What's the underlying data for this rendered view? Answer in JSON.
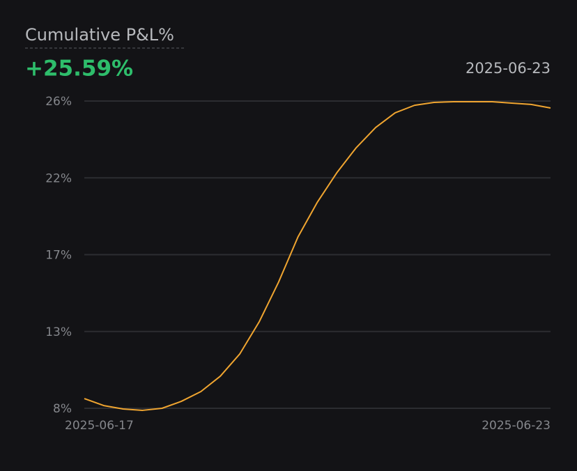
{
  "chart_data": {
    "type": "line",
    "title": "Cumulative P&L%",
    "headline": "+25.59%",
    "date": "2025-06-23",
    "categories": [
      "2025-06-17",
      null,
      null,
      null,
      null,
      null,
      null,
      null,
      null,
      null,
      null,
      null,
      null,
      null,
      null,
      null,
      null,
      null,
      null,
      null,
      null,
      null,
      null,
      null,
      "2025-06-23"
    ],
    "series": [
      {
        "color": "#f0a530",
        "values": [
          8.57,
          8.16,
          7.96,
          7.88,
          8.0,
          8.41,
          8.98,
          9.88,
          11.18,
          13.06,
          15.39,
          18.04,
          20.08,
          21.8,
          23.27,
          24.45,
          25.31,
          25.75,
          25.92,
          25.96,
          25.96,
          25.96,
          25.88,
          25.8,
          25.59
        ]
      }
    ],
    "ylim": [
      8,
      26
    ],
    "yticks": [
      {
        "value": 8,
        "label": "8%"
      },
      {
        "value": 12.5,
        "label": "13%"
      },
      {
        "value": 17,
        "label": "17%"
      },
      {
        "value": 21.5,
        "label": "22%"
      },
      {
        "value": 26,
        "label": "26%"
      }
    ],
    "grid": true
  }
}
